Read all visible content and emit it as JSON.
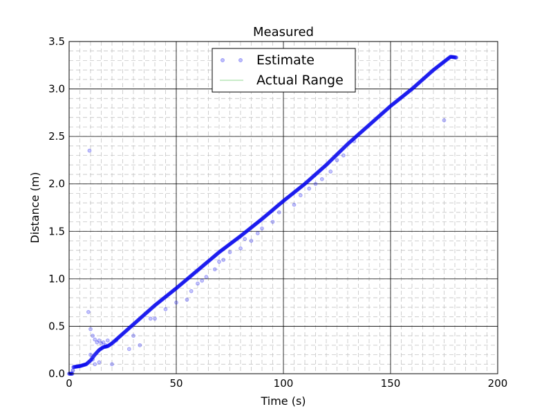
{
  "chart_data": {
    "type": "scatter",
    "title": "Measured",
    "xlabel": "Time (s)",
    "ylabel": "Distance (m)",
    "xlim": [
      0,
      200
    ],
    "ylim": [
      0,
      3.5
    ],
    "x_ticks": [
      0,
      50,
      100,
      150,
      200
    ],
    "x_tick_labels": [
      "0",
      "50",
      "100",
      "150",
      "200"
    ],
    "y_ticks": [
      0.0,
      0.5,
      1.0,
      1.5,
      2.0,
      2.5,
      3.0,
      3.5
    ],
    "y_tick_labels": [
      "0.0",
      "0.5",
      "1.0",
      "1.5",
      "2.0",
      "2.5",
      "3.0",
      "3.5"
    ],
    "grid": "major solid, minor dashed",
    "legend_position": "top-center",
    "legend": [
      {
        "label": "Estimate",
        "marker": "circle",
        "color": "#0000ee"
      },
      {
        "label": "Actual Range",
        "marker": "line",
        "color": "#90d890"
      }
    ],
    "series": [
      {
        "name": "Estimate",
        "color": "#0000ee",
        "main_trend": {
          "x": [
            0,
            1.5,
            2,
            5,
            8,
            10,
            12,
            14,
            16,
            18,
            20,
            25,
            30,
            40,
            50,
            60,
            70,
            80,
            90,
            100,
            110,
            120,
            130,
            140,
            150,
            160,
            170,
            178,
            181
          ],
          "y": [
            0.0,
            0.0,
            0.07,
            0.08,
            0.1,
            0.14,
            0.2,
            0.25,
            0.28,
            0.29,
            0.32,
            0.42,
            0.52,
            0.72,
            0.9,
            1.09,
            1.28,
            1.45,
            1.63,
            1.82,
            2.0,
            2.2,
            2.42,
            2.62,
            2.82,
            3.0,
            3.2,
            3.34,
            3.33
          ]
        },
        "outliers": {
          "x": [
            9,
            9.5,
            10,
            11,
            12,
            13,
            14,
            15,
            16,
            17,
            18,
            10,
            11,
            12,
            14,
            20,
            22,
            28,
            30,
            33,
            38,
            40,
            45,
            50,
            55,
            57,
            60,
            62,
            64,
            68,
            70,
            72,
            75,
            80,
            82,
            85,
            88,
            90,
            95,
            98,
            105,
            108,
            112,
            115,
            118,
            122,
            125,
            128,
            133,
            175
          ],
          "y": [
            0.65,
            2.35,
            0.47,
            0.4,
            0.36,
            0.33,
            0.35,
            0.32,
            0.33,
            0.3,
            0.35,
            0.2,
            0.15,
            0.1,
            0.12,
            0.1,
            0.35,
            0.26,
            0.4,
            0.3,
            0.58,
            0.58,
            0.68,
            0.75,
            0.78,
            0.87,
            0.95,
            0.98,
            1.02,
            1.1,
            1.18,
            1.2,
            1.28,
            1.32,
            1.42,
            1.4,
            1.48,
            1.53,
            1.6,
            1.7,
            1.78,
            1.88,
            1.95,
            2.0,
            2.05,
            2.13,
            2.25,
            2.3,
            2.45,
            2.67
          ]
        }
      },
      {
        "name": "Actual Range",
        "color": "#90d890",
        "x": [],
        "y": []
      }
    ]
  }
}
